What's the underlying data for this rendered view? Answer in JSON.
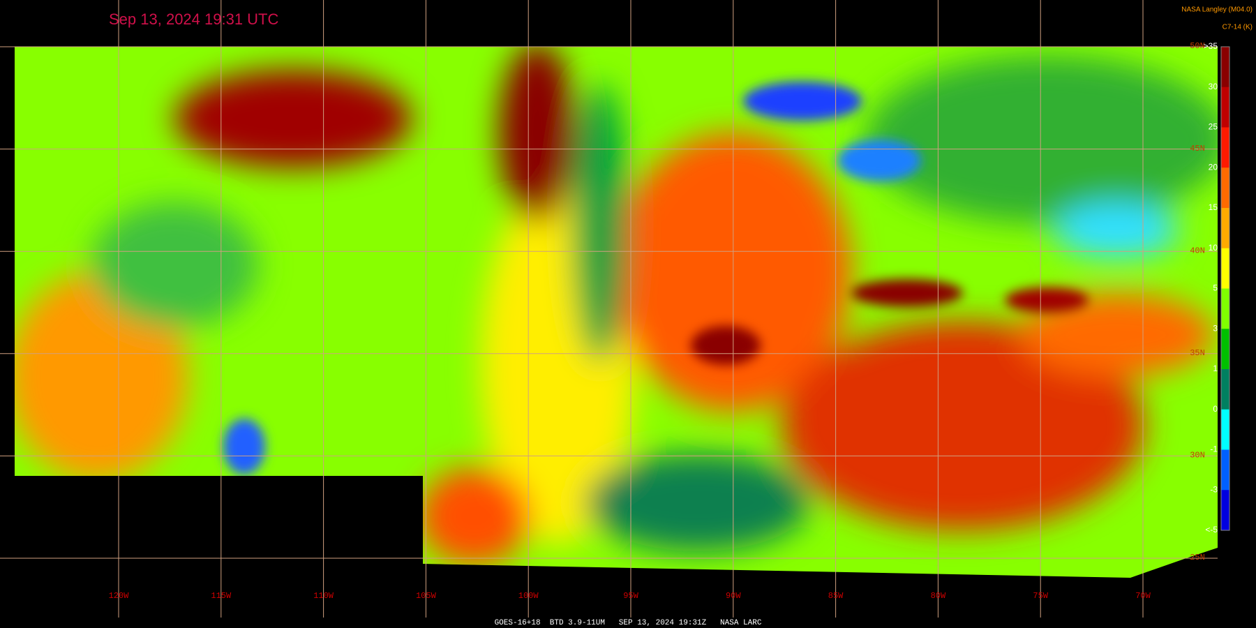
{
  "header": {
    "title": "Sep 13, 2024 19:31 UTC",
    "credit": "NASA Langley (M04.0)"
  },
  "colorbar": {
    "title": "C7-14 (K)",
    "labels": [
      ">35",
      "30",
      "25",
      "20",
      "15",
      "10",
      "5",
      "3",
      "1",
      "0",
      "-1",
      "-3",
      "<-5"
    ],
    "colors": [
      "#8a0000",
      "#c00000",
      "#ff1a00",
      "#ff6a00",
      "#ffaa00",
      "#ffff00",
      "#80ff00",
      "#00c000",
      "#008060",
      "#00ffff",
      "#0060ff",
      "#0000e0"
    ]
  },
  "map": {
    "longitude_labels": [
      "120W",
      "115W",
      "110W",
      "105W",
      "100W",
      "95W",
      "90W",
      "85W",
      "80W",
      "75W",
      "70W"
    ],
    "latitude_labels": [
      "50N",
      "45N",
      "40N",
      "35N",
      "30N",
      "25N"
    ]
  },
  "footer": {
    "caption": "GOES-16+18  BTD 3.9-11UM   SEP 13, 2024 19:31Z   NASA LARC"
  }
}
